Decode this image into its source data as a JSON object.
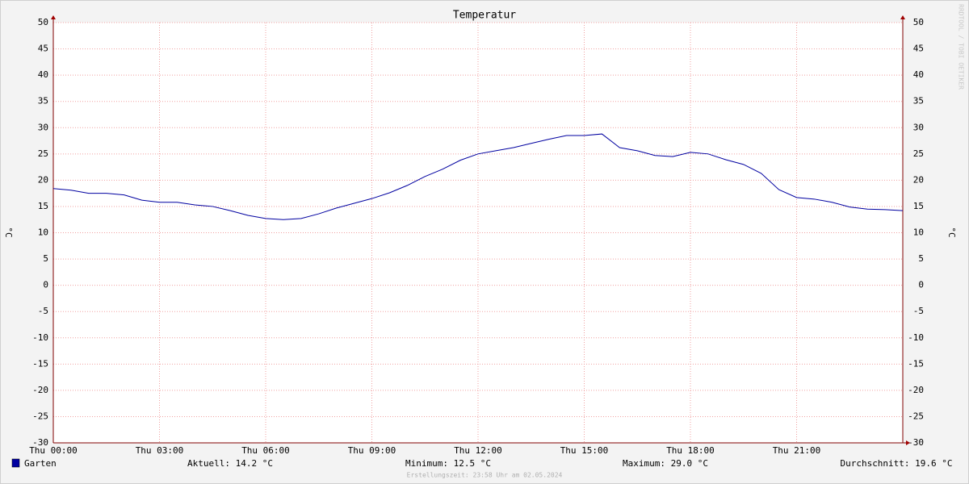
{
  "chart_data": {
    "type": "line",
    "title": "Temperatur",
    "ylabel": "°C",
    "y2label": "°C",
    "watermark": "RRDTOOL / TOBI OETIKER",
    "footer": "Erstellungszeit: 23:58 Uhr am 02.05.2024",
    "x": [
      0,
      0.5,
      1,
      1.5,
      2,
      2.5,
      3,
      3.5,
      4,
      4.5,
      5,
      5.5,
      6,
      6.5,
      7,
      7.5,
      8,
      8.5,
      9,
      9.5,
      10,
      10.5,
      11,
      11.5,
      12,
      12.5,
      13,
      13.5,
      14,
      14.5,
      15,
      15.5,
      16,
      16.5,
      17,
      17.5,
      18,
      18.5,
      19,
      19.5,
      20,
      20.5,
      21,
      21.5,
      22,
      22.5,
      23,
      23.5,
      24
    ],
    "series": [
      {
        "name": "Garten",
        "color": "#0000a0",
        "values": [
          18.4,
          18.1,
          17.5,
          17.5,
          17.2,
          16.2,
          15.8,
          15.8,
          15.3,
          15.0,
          14.2,
          13.3,
          12.7,
          12.5,
          12.7,
          13.6,
          14.7,
          15.6,
          16.5,
          17.6,
          19.0,
          20.7,
          22.1,
          23.8,
          25.0,
          25.6,
          26.2,
          27.0,
          27.8,
          28.5,
          28.5,
          28.8,
          26.2,
          25.6,
          24.7,
          24.5,
          25.3,
          25.0,
          23.9,
          23.0,
          21.3,
          18.2,
          16.7,
          16.4,
          15.8,
          14.9,
          14.5,
          14.4,
          14.2
        ]
      }
    ],
    "stats": [
      "Aktuell: 14.2 °C",
      "Minimum: 12.5 °C",
      "Maximum: 29.0 °C",
      "Durchschnitt: 19.6 °C"
    ],
    "xlim": [
      0,
      24
    ],
    "xticks": [
      {
        "value": 0,
        "label": "Thu 00:00"
      },
      {
        "value": 3,
        "label": "Thu 03:00"
      },
      {
        "value": 6,
        "label": "Thu 06:00"
      },
      {
        "value": 9,
        "label": "Thu 09:00"
      },
      {
        "value": 12,
        "label": "Thu 12:00"
      },
      {
        "value": 15,
        "label": "Thu 15:00"
      },
      {
        "value": 18,
        "label": "Thu 18:00"
      },
      {
        "value": 21,
        "label": "Thu 21:00"
      }
    ],
    "ylim": [
      -30,
      50
    ],
    "yticks": [
      -30,
      -25,
      -20,
      -15,
      -10,
      -5,
      0,
      5,
      10,
      15,
      20,
      25,
      30,
      35,
      40,
      45,
      50
    ],
    "grid": true
  }
}
